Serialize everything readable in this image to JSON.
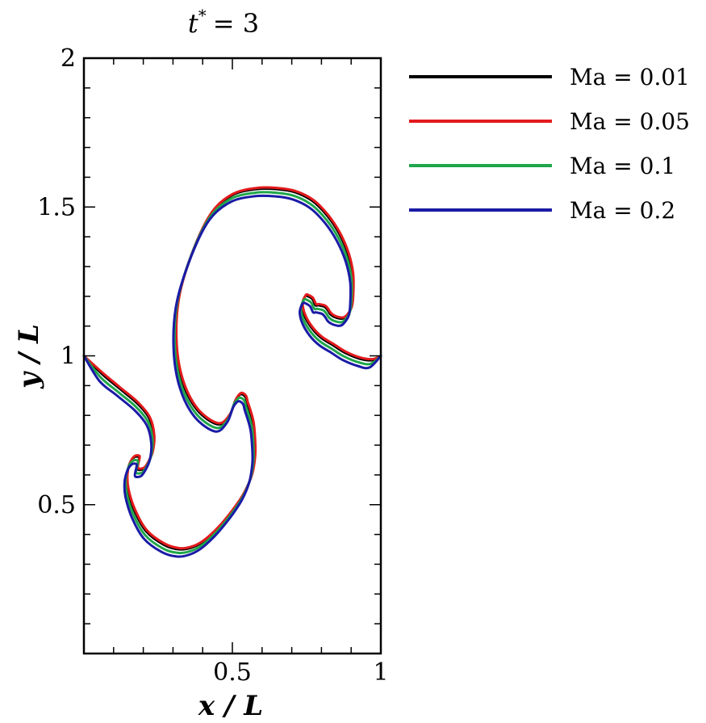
{
  "chart_data": {
    "type": "line",
    "title": {
      "symbol": "t",
      "superscript": "*",
      "equals": "= 3"
    },
    "xlabel": "x / L",
    "ylabel": "y / L",
    "xlim": [
      0,
      1
    ],
    "ylim": [
      0,
      2
    ],
    "x_ticks": [
      {
        "value": 0.5,
        "label": "0.5"
      },
      {
        "value": 1,
        "label": "1"
      }
    ],
    "y_ticks": [
      {
        "value": 0.5,
        "label": "0.5"
      },
      {
        "value": 1,
        "label": "1"
      },
      {
        "value": 1.5,
        "label": "1.5"
      },
      {
        "value": 2,
        "label": "2"
      }
    ],
    "x_minor_step": 0.1,
    "y_minor_step": 0.1,
    "grid": false,
    "legend_position": "right-top",
    "series": [
      {
        "name": "Ma = 0.01",
        "color": "#000000",
        "offset": [
          0.0,
          0.0
        ],
        "x": [
          0.0,
          0.06,
          0.12,
          0.18,
          0.22,
          0.235,
          0.23,
          0.215,
          0.2,
          0.18,
          0.185,
          0.185,
          0.17,
          0.155,
          0.145,
          0.148,
          0.17,
          0.21,
          0.27,
          0.32,
          0.36,
          0.4,
          0.45,
          0.5,
          0.54,
          0.565,
          0.575,
          0.575,
          0.57,
          0.56,
          0.55,
          0.545,
          0.535,
          0.525,
          0.51,
          0.49,
          0.45,
          0.38,
          0.33,
          0.31,
          0.32,
          0.37,
          0.43,
          0.5,
          0.58,
          0.65,
          0.71,
          0.77,
          0.82,
          0.86,
          0.89,
          0.905,
          0.905,
          0.9,
          0.885,
          0.87,
          0.845,
          0.83,
          0.82,
          0.81,
          0.79,
          0.78,
          0.77,
          0.755,
          0.745,
          0.735,
          0.745,
          0.77,
          0.8,
          0.84,
          0.88,
          0.93,
          0.97,
          1.0
        ],
        "y": [
          1.0,
          0.94,
          0.89,
          0.84,
          0.79,
          0.73,
          0.675,
          0.64,
          0.62,
          0.62,
          0.65,
          0.66,
          0.66,
          0.64,
          0.6,
          0.55,
          0.48,
          0.41,
          0.365,
          0.35,
          0.355,
          0.375,
          0.42,
          0.48,
          0.54,
          0.6,
          0.66,
          0.71,
          0.77,
          0.81,
          0.84,
          0.86,
          0.87,
          0.87,
          0.85,
          0.8,
          0.77,
          0.82,
          0.92,
          1.05,
          1.2,
          1.36,
          1.48,
          1.54,
          1.56,
          1.56,
          1.55,
          1.52,
          1.47,
          1.41,
          1.34,
          1.27,
          1.2,
          1.16,
          1.135,
          1.125,
          1.13,
          1.14,
          1.155,
          1.165,
          1.17,
          1.17,
          1.19,
          1.2,
          1.2,
          1.17,
          1.13,
          1.09,
          1.06,
          1.035,
          1.01,
          0.99,
          0.985,
          1.0
        ]
      },
      {
        "name": "Ma = 0.05",
        "color": "#e31a1c",
        "offset": [
          0.002,
          0.004
        ],
        "x": [
          0.0,
          0.06,
          0.12,
          0.18,
          0.22,
          0.235,
          0.23,
          0.215,
          0.2,
          0.18,
          0.185,
          0.185,
          0.17,
          0.155,
          0.145,
          0.148,
          0.17,
          0.21,
          0.27,
          0.32,
          0.36,
          0.4,
          0.45,
          0.5,
          0.54,
          0.565,
          0.575,
          0.575,
          0.57,
          0.56,
          0.55,
          0.545,
          0.535,
          0.525,
          0.51,
          0.49,
          0.45,
          0.38,
          0.33,
          0.31,
          0.32,
          0.37,
          0.43,
          0.5,
          0.58,
          0.65,
          0.71,
          0.77,
          0.82,
          0.86,
          0.89,
          0.905,
          0.905,
          0.9,
          0.885,
          0.87,
          0.845,
          0.83,
          0.82,
          0.81,
          0.79,
          0.78,
          0.77,
          0.755,
          0.745,
          0.735,
          0.745,
          0.77,
          0.8,
          0.84,
          0.88,
          0.93,
          0.97,
          1.0
        ],
        "y": [
          1.0,
          0.94,
          0.89,
          0.84,
          0.79,
          0.73,
          0.675,
          0.64,
          0.62,
          0.62,
          0.65,
          0.66,
          0.66,
          0.64,
          0.6,
          0.55,
          0.48,
          0.41,
          0.365,
          0.35,
          0.355,
          0.375,
          0.42,
          0.48,
          0.54,
          0.6,
          0.66,
          0.71,
          0.77,
          0.81,
          0.84,
          0.86,
          0.87,
          0.87,
          0.85,
          0.8,
          0.77,
          0.82,
          0.92,
          1.05,
          1.2,
          1.36,
          1.48,
          1.54,
          1.56,
          1.56,
          1.55,
          1.52,
          1.47,
          1.41,
          1.34,
          1.27,
          1.2,
          1.16,
          1.135,
          1.125,
          1.13,
          1.14,
          1.155,
          1.165,
          1.17,
          1.17,
          1.19,
          1.2,
          1.2,
          1.17,
          1.13,
          1.09,
          1.06,
          1.035,
          1.01,
          0.99,
          0.985,
          1.0
        ]
      },
      {
        "name": "Ma = 0.1",
        "color": "#1fa64a",
        "offset": [
          -0.004,
          -0.012
        ],
        "x": [
          0.0,
          0.06,
          0.12,
          0.18,
          0.22,
          0.235,
          0.23,
          0.215,
          0.2,
          0.18,
          0.185,
          0.185,
          0.17,
          0.155,
          0.145,
          0.148,
          0.17,
          0.21,
          0.27,
          0.32,
          0.36,
          0.4,
          0.45,
          0.5,
          0.54,
          0.565,
          0.575,
          0.575,
          0.57,
          0.56,
          0.55,
          0.545,
          0.535,
          0.525,
          0.51,
          0.49,
          0.45,
          0.38,
          0.33,
          0.31,
          0.32,
          0.37,
          0.43,
          0.5,
          0.58,
          0.65,
          0.71,
          0.77,
          0.82,
          0.86,
          0.89,
          0.905,
          0.905,
          0.9,
          0.885,
          0.87,
          0.845,
          0.83,
          0.82,
          0.81,
          0.79,
          0.78,
          0.77,
          0.755,
          0.745,
          0.735,
          0.745,
          0.77,
          0.8,
          0.84,
          0.88,
          0.93,
          0.97,
          1.0
        ],
        "y": [
          1.0,
          0.94,
          0.89,
          0.84,
          0.79,
          0.73,
          0.675,
          0.64,
          0.62,
          0.62,
          0.65,
          0.66,
          0.66,
          0.64,
          0.6,
          0.55,
          0.48,
          0.41,
          0.365,
          0.35,
          0.355,
          0.375,
          0.42,
          0.48,
          0.54,
          0.6,
          0.66,
          0.71,
          0.77,
          0.81,
          0.84,
          0.86,
          0.87,
          0.87,
          0.85,
          0.8,
          0.77,
          0.82,
          0.92,
          1.05,
          1.2,
          1.36,
          1.48,
          1.54,
          1.56,
          1.56,
          1.55,
          1.52,
          1.47,
          1.41,
          1.34,
          1.27,
          1.2,
          1.16,
          1.135,
          1.125,
          1.13,
          1.14,
          1.155,
          1.165,
          1.17,
          1.17,
          1.19,
          1.2,
          1.2,
          1.17,
          1.13,
          1.09,
          1.06,
          1.035,
          1.01,
          0.99,
          0.985,
          1.0
        ]
      },
      {
        "name": "Ma = 0.2",
        "color": "#1a1aa6",
        "offset": [
          -0.008,
          -0.024
        ],
        "x": [
          0.0,
          0.06,
          0.12,
          0.18,
          0.22,
          0.235,
          0.23,
          0.215,
          0.2,
          0.18,
          0.185,
          0.185,
          0.17,
          0.155,
          0.145,
          0.148,
          0.17,
          0.21,
          0.27,
          0.32,
          0.36,
          0.4,
          0.45,
          0.5,
          0.54,
          0.565,
          0.575,
          0.575,
          0.57,
          0.56,
          0.55,
          0.545,
          0.535,
          0.525,
          0.51,
          0.49,
          0.45,
          0.38,
          0.33,
          0.31,
          0.32,
          0.37,
          0.43,
          0.5,
          0.58,
          0.65,
          0.71,
          0.77,
          0.82,
          0.86,
          0.89,
          0.905,
          0.905,
          0.9,
          0.885,
          0.87,
          0.845,
          0.83,
          0.82,
          0.81,
          0.79,
          0.78,
          0.77,
          0.755,
          0.745,
          0.735,
          0.745,
          0.77,
          0.8,
          0.84,
          0.88,
          0.93,
          0.97,
          1.0
        ],
        "y": [
          1.0,
          0.94,
          0.89,
          0.84,
          0.79,
          0.73,
          0.675,
          0.64,
          0.62,
          0.62,
          0.65,
          0.66,
          0.66,
          0.64,
          0.6,
          0.55,
          0.48,
          0.41,
          0.365,
          0.35,
          0.355,
          0.375,
          0.42,
          0.48,
          0.54,
          0.6,
          0.66,
          0.71,
          0.77,
          0.81,
          0.84,
          0.86,
          0.87,
          0.87,
          0.85,
          0.8,
          0.77,
          0.82,
          0.92,
          1.05,
          1.2,
          1.36,
          1.48,
          1.54,
          1.56,
          1.56,
          1.55,
          1.52,
          1.47,
          1.41,
          1.34,
          1.27,
          1.2,
          1.16,
          1.135,
          1.125,
          1.13,
          1.14,
          1.155,
          1.165,
          1.17,
          1.17,
          1.19,
          1.2,
          1.2,
          1.17,
          1.13,
          1.09,
          1.06,
          1.035,
          1.01,
          0.99,
          0.985,
          1.0
        ]
      }
    ]
  }
}
